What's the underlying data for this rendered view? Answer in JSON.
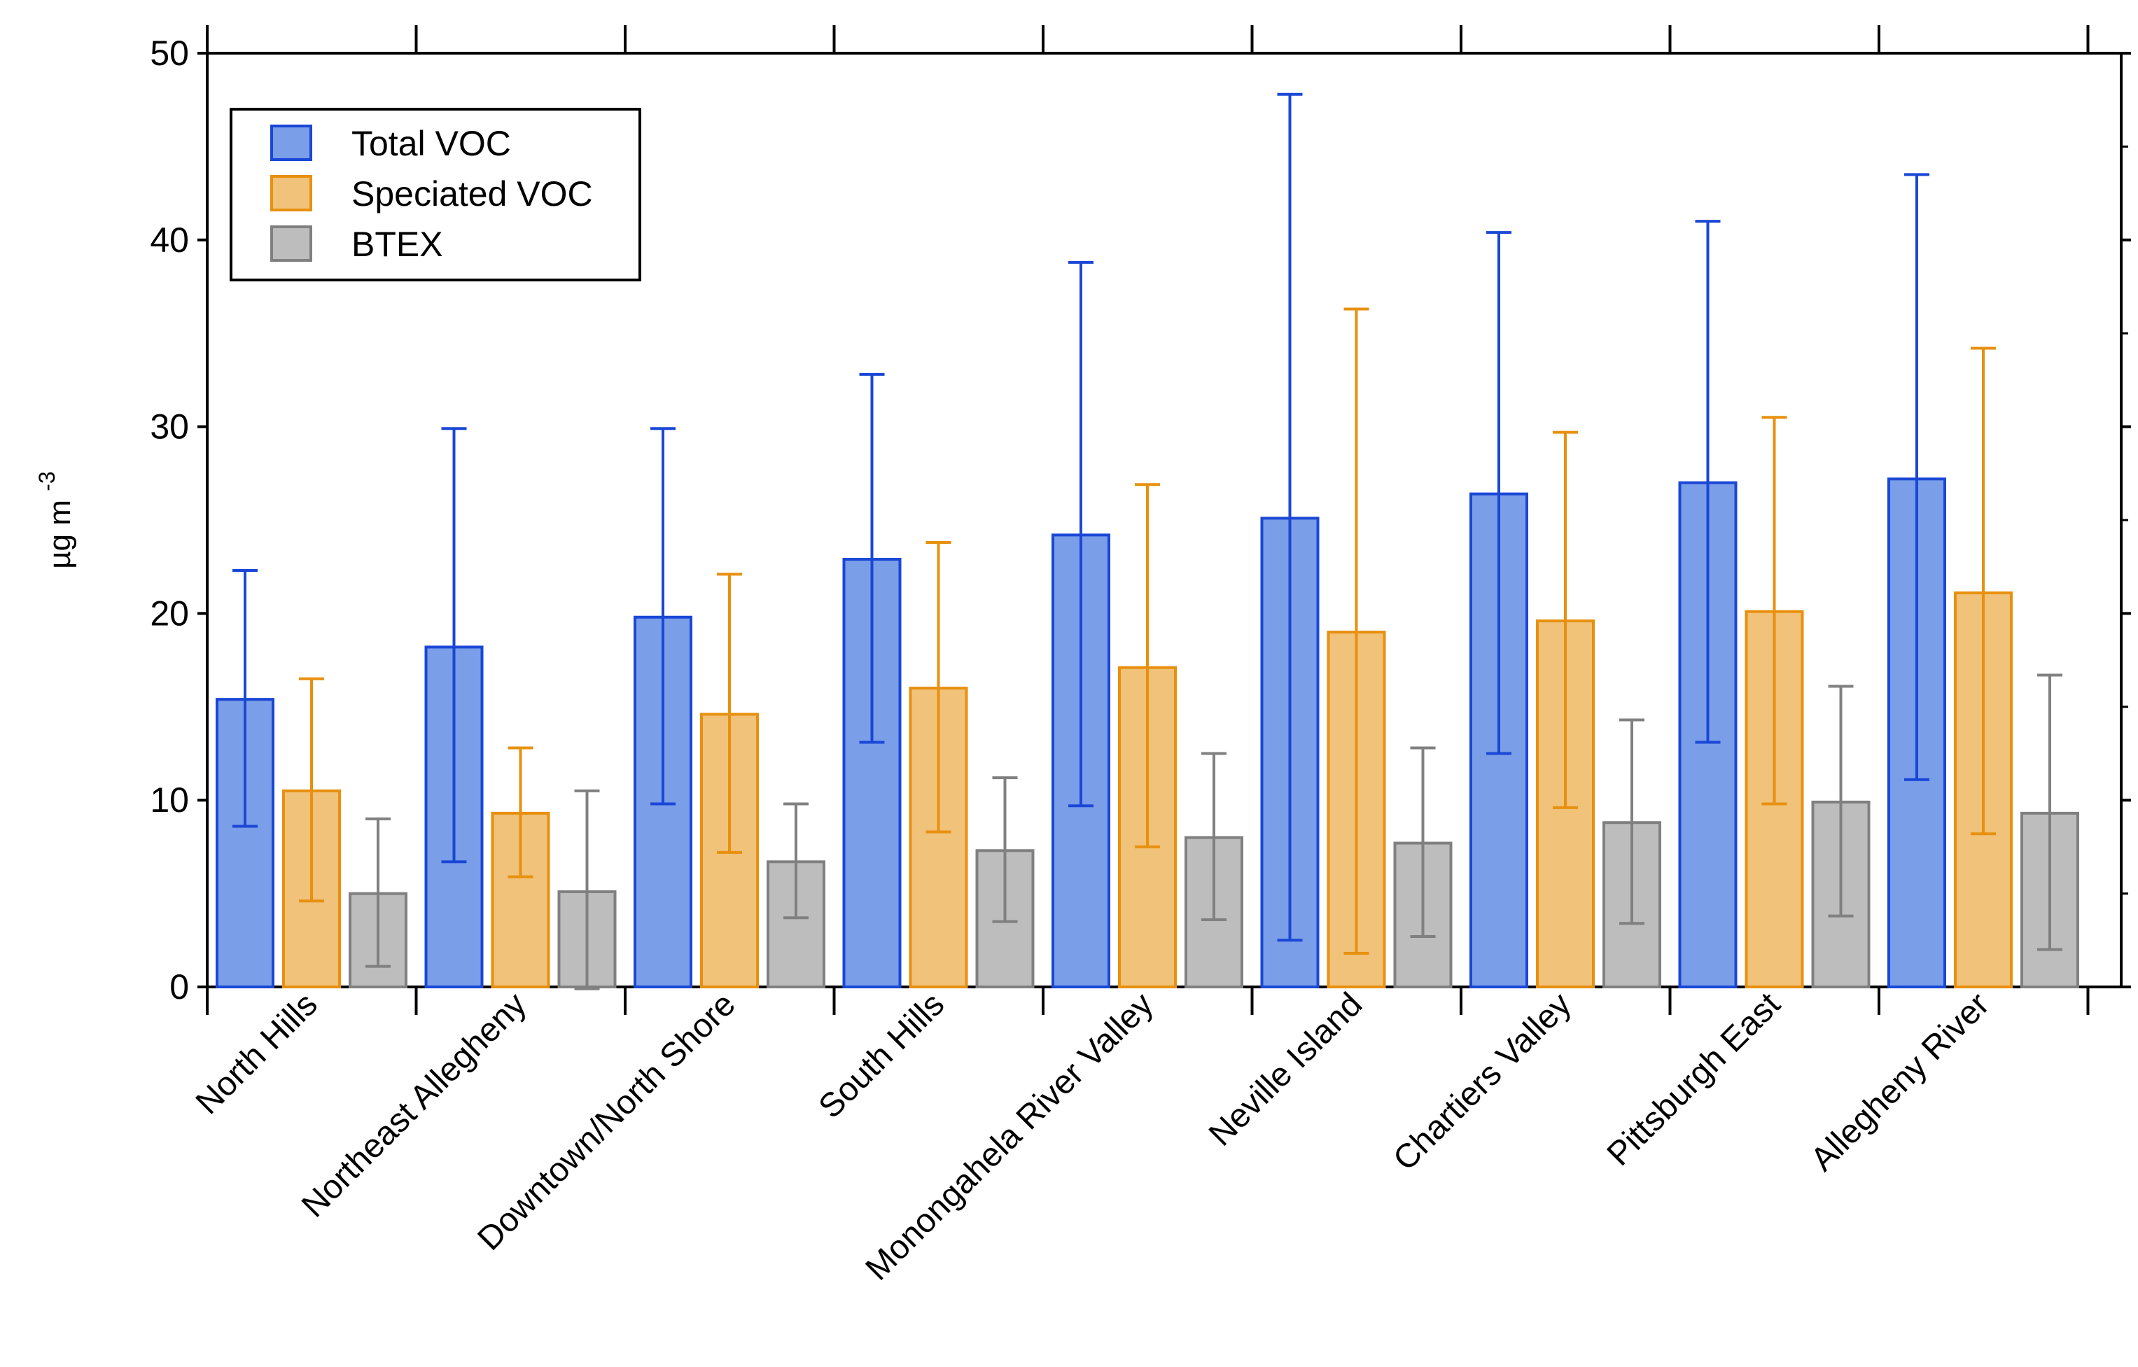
{
  "chart_data": {
    "type": "bar",
    "title": "",
    "xlabel": "",
    "ylabel": "µg m",
    "ylabel_superscript": "-3",
    "ylim": [
      0,
      50
    ],
    "yticks": [
      "0",
      "10",
      "20",
      "30",
      "40",
      "50"
    ],
    "grid": false,
    "legend_position": "top-left",
    "categories": [
      "North Hills",
      "Northeast Allegheny",
      "Downtown/North Shore",
      "South Hills",
      "Monongahela River Valley",
      "Neville Island",
      "Chartiers Valley",
      "Pittsburgh East",
      "Allegheny River"
    ],
    "series": [
      {
        "name": "Total VOC",
        "color": "#7a9ee8",
        "edge": "#1a47d6",
        "values": [
          15.4,
          18.2,
          19.8,
          22.9,
          24.2,
          25.1,
          26.4,
          27.0,
          27.2
        ],
        "err_low": [
          8.6,
          6.7,
          9.8,
          13.1,
          9.7,
          2.5,
          12.5,
          13.1,
          11.1
        ],
        "err_high": [
          22.3,
          29.9,
          29.9,
          32.8,
          38.8,
          47.8,
          40.4,
          41.0,
          43.5
        ]
      },
      {
        "name": "Speciated VOC",
        "color": "#f0c27a",
        "edge": "#e8900f",
        "values": [
          10.5,
          9.3,
          14.6,
          16.0,
          17.1,
          19.0,
          19.6,
          20.1,
          21.1
        ],
        "err_low": [
          4.6,
          5.9,
          7.2,
          8.3,
          7.5,
          1.8,
          9.6,
          9.8,
          8.2
        ],
        "err_high": [
          16.5,
          12.8,
          22.1,
          23.8,
          26.9,
          36.3,
          29.7,
          30.5,
          34.2
        ]
      },
      {
        "name": "BTEX",
        "color": "#bdbdbd",
        "edge": "#808080",
        "values": [
          5.0,
          5.1,
          6.7,
          7.3,
          8.0,
          7.7,
          8.8,
          9.9,
          9.3
        ],
        "err_low": [
          1.1,
          -0.1,
          3.7,
          3.5,
          3.6,
          2.7,
          3.4,
          3.8,
          2.0
        ],
        "err_high": [
          9.0,
          10.5,
          9.8,
          11.2,
          12.5,
          12.8,
          14.3,
          16.1,
          16.7
        ]
      }
    ]
  }
}
